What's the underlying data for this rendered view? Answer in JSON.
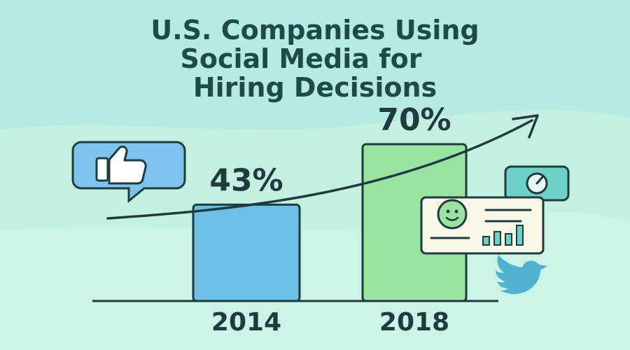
{
  "title_lines": [
    "U.S. Companies Using",
    "Social Media for",
    "Hiring Decisions"
  ],
  "colors": {
    "background_top": "#b6ebe3",
    "background_bottom": "#c4f0df",
    "wave": "#cbf3e6",
    "ink": "#1f3b40",
    "title": "#1f4a4a",
    "bar_2014": "#6cc0e6",
    "bar_2018": "#9be3a0",
    "icon_blue": "#7cc4ee",
    "icon_teal": "#6fd0c6",
    "card": "#fbf7e8",
    "bird": "#4fb2cf"
  },
  "icons": [
    "thumbs-up-icon",
    "gauge-icon",
    "profile-card-icon",
    "bird-icon",
    "trend-arrow-icon"
  ],
  "chart_data": {
    "type": "bar",
    "categories": [
      "2014",
      "2018"
    ],
    "values": [
      43,
      70
    ],
    "value_labels": [
      "43%",
      "70%"
    ],
    "ylim": [
      0,
      100
    ],
    "title": "U.S. Companies Using Social Media for Hiring Decisions",
    "xlabel": "",
    "ylabel": "",
    "legend": "none",
    "grid": false
  }
}
